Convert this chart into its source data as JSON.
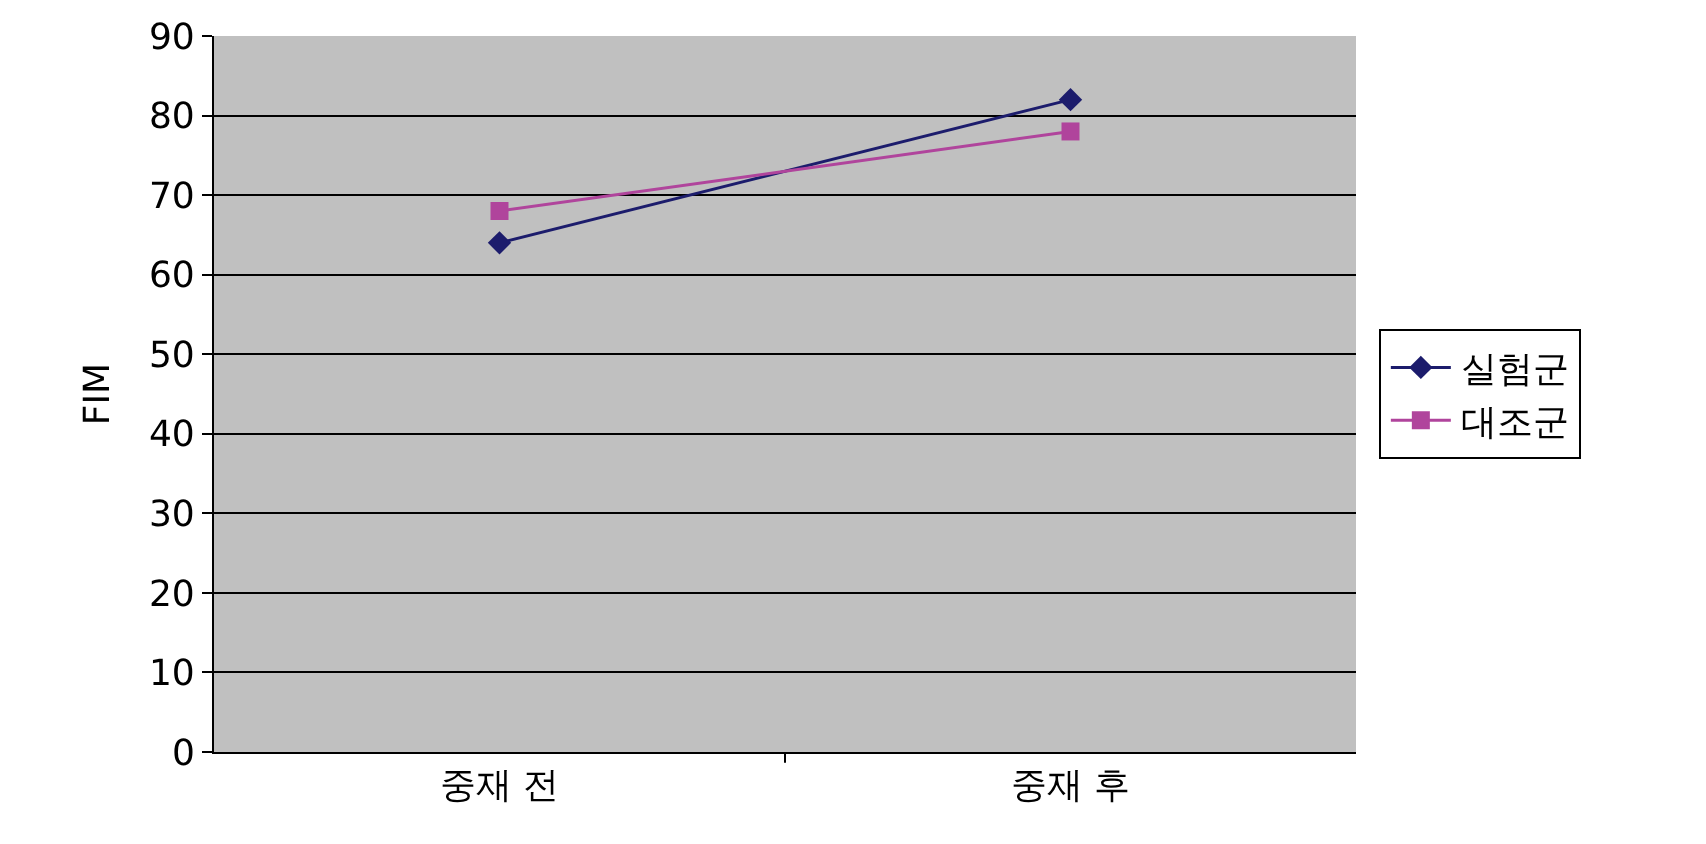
{
  "chart_data": {
    "type": "line",
    "ylabel": "FIM",
    "categories": [
      "중재 전",
      "중재 후"
    ],
    "series": [
      {
        "name": "실험군",
        "color": "#1c1c6c",
        "values": [
          64,
          82
        ],
        "marker": "diamond"
      },
      {
        "name": "대조군",
        "color": "#b0449c",
        "values": [
          68,
          78
        ],
        "marker": "square"
      }
    ],
    "ylim": [
      0,
      90
    ],
    "yticks": [
      0,
      10,
      20,
      30,
      40,
      50,
      60,
      70,
      80,
      90
    ],
    "grid": "y",
    "legend": "right",
    "line_style": "solid"
  }
}
